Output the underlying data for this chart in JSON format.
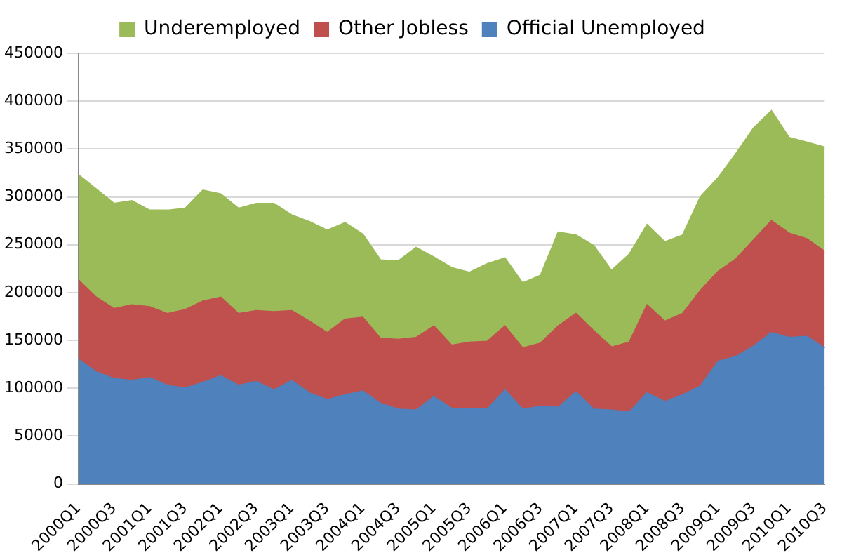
{
  "chart_data": {
    "type": "area",
    "stacked": true,
    "categories": [
      "2000Q1",
      null,
      "2000Q3",
      null,
      "2001Q1",
      null,
      "2001Q3",
      null,
      "2002Q1",
      null,
      "2002Q3",
      null,
      "2003Q1",
      null,
      "2003Q3",
      null,
      "2004Q1",
      null,
      "2004Q3",
      null,
      "2005Q1",
      null,
      "2005Q3",
      null,
      "2006Q1",
      null,
      "2006Q3",
      null,
      "2007Q1",
      null,
      "2007Q3",
      null,
      "2008Q1",
      null,
      "2008Q3",
      null,
      "2009Q1",
      null,
      "2009Q3",
      null,
      "2010Q1",
      null,
      "2010Q3"
    ],
    "series": [
      {
        "name": "Official Unemployed",
        "color": "#4f81bd",
        "values": [
          130000,
          117000,
          110000,
          108000,
          111000,
          103000,
          100000,
          106000,
          113000,
          103000,
          107000,
          98000,
          108000,
          95000,
          88000,
          93000,
          97000,
          84000,
          78000,
          77000,
          91000,
          79000,
          79000,
          78000,
          98000,
          78000,
          81000,
          80000,
          96000,
          78000,
          77000,
          75000,
          95000,
          86000,
          93000,
          102000,
          128000,
          133000,
          144000,
          158000,
          153000,
          154000,
          142000
        ]
      },
      {
        "name": "Other Jobless",
        "color": "#c0504d",
        "values": [
          83000,
          78000,
          73000,
          79000,
          74000,
          75000,
          82000,
          85000,
          82000,
          75000,
          74000,
          82000,
          73000,
          75000,
          70000,
          79000,
          77000,
          68000,
          73000,
          76000,
          74000,
          66000,
          69000,
          71000,
          67000,
          64000,
          66000,
          85000,
          82000,
          82000,
          66000,
          73000,
          92000,
          84000,
          85000,
          100000,
          94000,
          102000,
          111000,
          117000,
          109000,
          102000,
          101000
        ]
      },
      {
        "name": "Underemployed",
        "color": "#9bbb59",
        "values": [
          110000,
          113000,
          110000,
          109000,
          101000,
          108000,
          106000,
          116000,
          108000,
          110000,
          112000,
          113000,
          100000,
          104000,
          107000,
          101000,
          87000,
          82000,
          82000,
          94000,
          72000,
          81000,
          73000,
          81000,
          71000,
          68000,
          71000,
          98000,
          82000,
          89000,
          80000,
          92000,
          84000,
          83000,
          82000,
          98000,
          98000,
          110000,
          117000,
          115000,
          100000,
          101000,
          109000
        ]
      }
    ],
    "ylim": [
      0,
      450000
    ],
    "yticks": [
      0,
      50000,
      100000,
      150000,
      200000,
      250000,
      300000,
      350000,
      400000,
      450000
    ],
    "grid": "y",
    "legend": "top"
  }
}
